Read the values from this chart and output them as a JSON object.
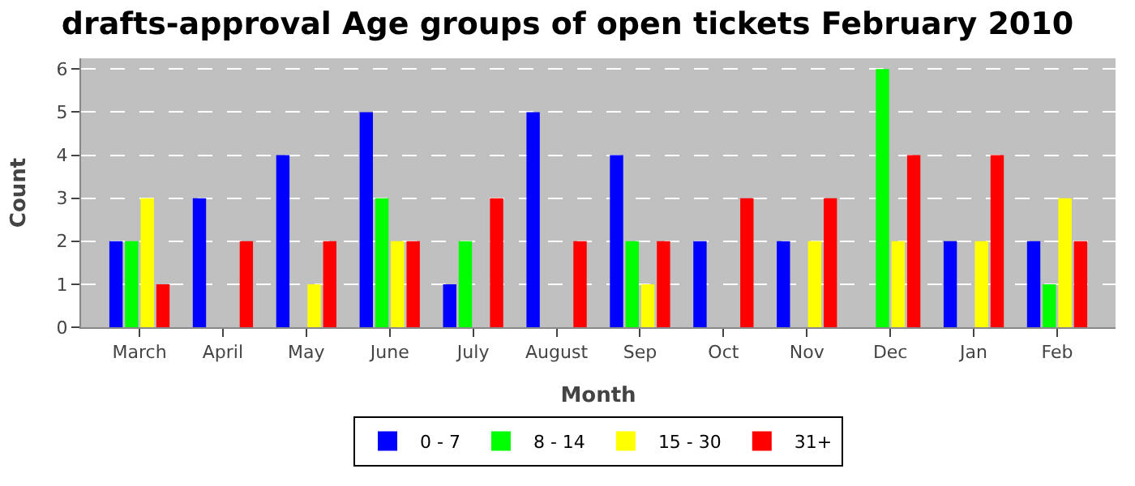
{
  "chart_data": {
    "type": "bar",
    "title": "drafts-approval Age groups of open tickets February 2010",
    "xlabel": "Month",
    "ylabel": "Count",
    "categories": [
      "March",
      "April",
      "May",
      "June",
      "July",
      "August",
      "Sep",
      "Oct",
      "Nov",
      "Dec",
      "Jan",
      "Feb"
    ],
    "series": [
      {
        "name": "0 - 7",
        "color": "#0000ff",
        "values": [
          2,
          3,
          4,
          5,
          1,
          5,
          4,
          2,
          2,
          0,
          2,
          2
        ]
      },
      {
        "name": "8 - 14",
        "color": "#00ff00",
        "values": [
          2,
          0,
          0,
          3,
          2,
          0,
          2,
          0,
          0,
          6,
          0,
          1
        ]
      },
      {
        "name": "15 - 30",
        "color": "#ffff00",
        "values": [
          3,
          0,
          1,
          2,
          0,
          0,
          1,
          0,
          2,
          2,
          2,
          3
        ]
      },
      {
        "name": "31+",
        "color": "#ff0000",
        "values": [
          1,
          2,
          2,
          2,
          3,
          2,
          2,
          3,
          3,
          4,
          4,
          2
        ]
      }
    ],
    "ylim": [
      0,
      6.25
    ],
    "yticks": [
      0,
      1,
      2,
      3,
      4,
      5,
      6
    ],
    "grid": "y",
    "legend": "bottom"
  }
}
